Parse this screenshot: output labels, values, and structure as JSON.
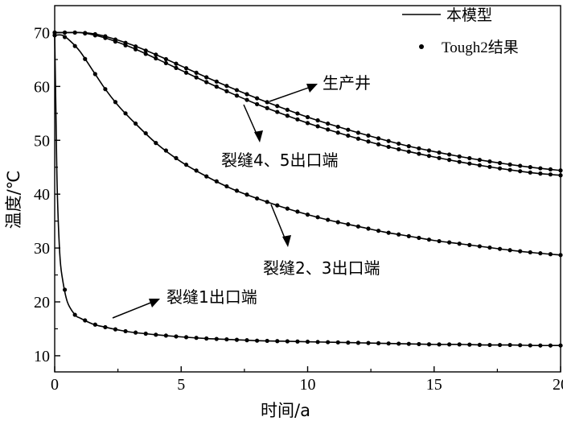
{
  "chart_data": {
    "type": "line",
    "xlabel": "时间/a",
    "ylabel": "温度/℃",
    "xlim": [
      0,
      20
    ],
    "ylim": [
      7,
      75
    ],
    "xticks": [
      0,
      5,
      10,
      15,
      20
    ],
    "yticks": [
      10,
      20,
      30,
      40,
      50,
      60,
      70
    ],
    "grid": false,
    "legend_position": "top-right",
    "legend": {
      "line_label": "本模型",
      "marker_label": "Tough2结果"
    },
    "series": [
      {
        "name": "生产井",
        "x": [
          0,
          0.5,
          1,
          1.5,
          2,
          3,
          4,
          5,
          6,
          7,
          8,
          9,
          10,
          11,
          12,
          13,
          14,
          15,
          16,
          17,
          18,
          19,
          20
        ],
        "y": [
          70,
          70,
          70,
          69.8,
          69.3,
          67.8,
          65.9,
          63.8,
          61.7,
          59.7,
          57.8,
          56.0,
          54.3,
          52.8,
          51.4,
          50.1,
          48.9,
          47.9,
          47.0,
          46.2,
          45.5,
          44.9,
          44.4
        ]
      },
      {
        "name": "裂缝4、5出口端",
        "x": [
          0,
          0.5,
          1,
          1.5,
          2,
          3,
          4,
          5,
          6,
          7,
          8,
          9,
          10,
          11,
          12,
          13,
          14,
          15,
          16,
          17,
          18,
          19,
          20
        ],
        "y": [
          70,
          70,
          70,
          69.6,
          69.0,
          67.3,
          65.2,
          63.0,
          60.8,
          58.7,
          56.7,
          54.9,
          53.2,
          51.7,
          50.3,
          49.0,
          47.9,
          46.9,
          46.0,
          45.2,
          44.5,
          43.9,
          43.5
        ]
      },
      {
        "name": "裂缝2、3出口端",
        "x": [
          0,
          0.3,
          0.6,
          1,
          1.5,
          2,
          2.5,
          3,
          4,
          5,
          6,
          7,
          8,
          9,
          10,
          11,
          12,
          13,
          14,
          15,
          16,
          17,
          18,
          19,
          20
        ],
        "y": [
          69.5,
          69.5,
          68.5,
          66.5,
          63.0,
          59.5,
          56.5,
          54.0,
          49.5,
          46.0,
          43.3,
          41.0,
          39.2,
          37.6,
          36.2,
          35.0,
          34.0,
          33.0,
          32.2,
          31.4,
          30.8,
          30.2,
          29.6,
          29.1,
          28.7
        ]
      },
      {
        "name": "裂缝1出口端",
        "x": [
          0,
          0.05,
          0.1,
          0.2,
          0.3,
          0.5,
          0.8,
          1,
          1.5,
          2,
          2.5,
          3,
          4,
          5,
          6,
          7,
          8,
          9,
          10,
          11,
          12,
          13,
          14,
          15,
          16,
          17,
          18,
          19,
          20
        ],
        "y": [
          69.5,
          55,
          41,
          29,
          24.5,
          20.0,
          17.6,
          17.0,
          15.9,
          15.3,
          14.8,
          14.4,
          13.9,
          13.5,
          13.2,
          13.0,
          12.8,
          12.7,
          12.6,
          12.5,
          12.4,
          12.3,
          12.2,
          12.1,
          12.1,
          12.0,
          12.0,
          11.9,
          11.9
        ]
      }
    ],
    "annotations": [
      {
        "text": "生产井",
        "points_to_series": "生产井"
      },
      {
        "text": "裂缝4、5出口端",
        "points_to_series": "裂缝4、5出口端"
      },
      {
        "text": "裂缝2、3出口端",
        "points_to_series": "裂缝2、3出口端"
      },
      {
        "text": "裂缝1出口端",
        "points_to_series": "裂缝1出口端"
      }
    ]
  }
}
